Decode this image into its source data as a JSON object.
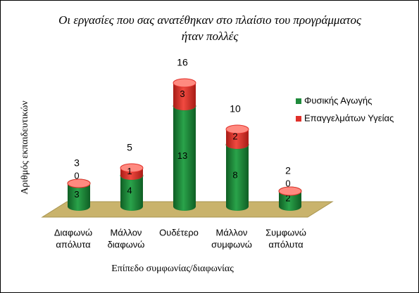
{
  "chart_data": {
    "type": "bar",
    "stacked": true,
    "title": [
      "Οι εργασίες που σας ανατέθηκαν στο πλαίσιο του προγράμματος",
      "ήταν πολλές"
    ],
    "x_label": "Επίπεδο συμφωνίας/διαφωνίας",
    "y_label": "Αριθμός εκπαιδευτικών",
    "categories": [
      [
        "Διαφωνώ",
        "απόλυτα"
      ],
      [
        "Μάλλον",
        "διαφωνώ"
      ],
      [
        "Ουδέτερο"
      ],
      [
        "Μάλλον",
        "συμφωνώ"
      ],
      [
        "Συμφωνώ",
        "απόλυτα"
      ]
    ],
    "series": [
      {
        "name": "Φυσικής Αγωγής",
        "color": "#1f8a3b",
        "values": [
          3,
          4,
          13,
          8,
          2
        ]
      },
      {
        "name": "Επαγγελμάτων Υγείας",
        "color": "#e0302a",
        "values": [
          0,
          1,
          3,
          2,
          0
        ]
      }
    ],
    "totals": [
      3,
      5,
      16,
      10,
      2
    ],
    "legend": "right"
  }
}
